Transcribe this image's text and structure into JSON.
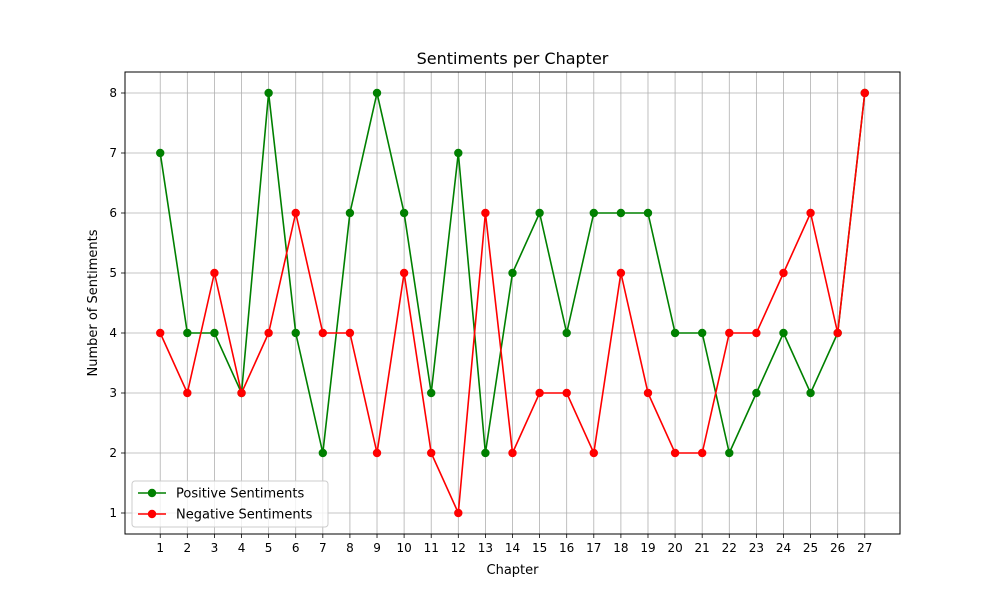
{
  "chart_data": {
    "type": "line",
    "title": "Sentiments per Chapter",
    "xlabel": "Chapter",
    "ylabel": "Number of Sentiments",
    "x": [
      1,
      2,
      3,
      4,
      5,
      6,
      7,
      8,
      9,
      10,
      11,
      12,
      13,
      14,
      15,
      16,
      17,
      18,
      19,
      20,
      21,
      22,
      23,
      24,
      25,
      26,
      27
    ],
    "xlim": [
      -0.3,
      28.3
    ],
    "ylim": [
      0.65,
      8.35
    ],
    "yticks": [
      1,
      2,
      3,
      4,
      5,
      6,
      7,
      8
    ],
    "grid": true,
    "legend_position": "lower-left",
    "series": [
      {
        "name": "Positive Sentiments",
        "color": "#008000",
        "marker": "circle",
        "values": [
          7,
          4,
          4,
          3,
          8,
          4,
          2,
          6,
          8,
          6,
          3,
          7,
          2,
          5,
          6,
          4,
          6,
          6,
          6,
          4,
          4,
          2,
          3,
          4,
          3,
          4,
          8
        ]
      },
      {
        "name": "Negative Sentiments",
        "color": "#ff0000",
        "marker": "circle",
        "values": [
          4,
          3,
          5,
          3,
          4,
          6,
          4,
          4,
          2,
          5,
          2,
          1,
          6,
          2,
          3,
          3,
          2,
          5,
          3,
          2,
          2,
          4,
          4,
          5,
          6,
          4,
          8
        ]
      }
    ]
  }
}
